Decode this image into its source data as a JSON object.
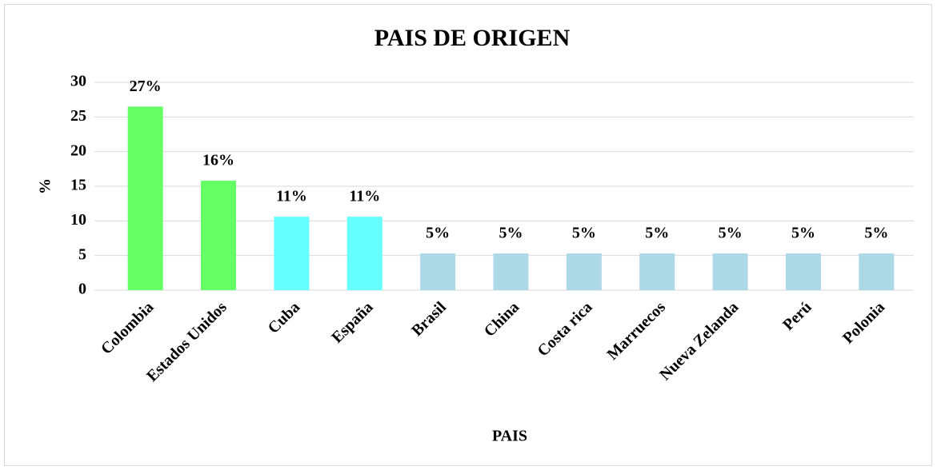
{
  "chart_data": {
    "type": "bar",
    "title": "PAIS DE ORIGEN",
    "x_label": "PAIS",
    "y_label": "%",
    "categories": [
      "Colombia",
      "Estados Unidos",
      "Cuba",
      "España",
      "Brasil",
      "China",
      "Costa rica",
      "Marruecos",
      "Nueva Zelanda",
      "Perú",
      "Polonia"
    ],
    "values": [
      26.5,
      15.8,
      10.6,
      10.6,
      5.3,
      5.3,
      5.3,
      5.3,
      5.3,
      5.3,
      5.3
    ],
    "value_labels": [
      "27%",
      "16%",
      "11%",
      "11%",
      "5%",
      "5%",
      "5%",
      "5%",
      "5%",
      "5%",
      "5%"
    ],
    "colors": [
      "#66ff66",
      "#66ff66",
      "#66ffff",
      "#66ffff",
      "#add8e6",
      "#add8e6",
      "#add8e6",
      "#add8e6",
      "#add8e6",
      "#add8e6",
      "#add8e6"
    ],
    "ylim": [
      0,
      30
    ],
    "yticks": [
      0,
      5,
      10,
      15,
      20,
      25,
      30
    ],
    "grid": true
  }
}
